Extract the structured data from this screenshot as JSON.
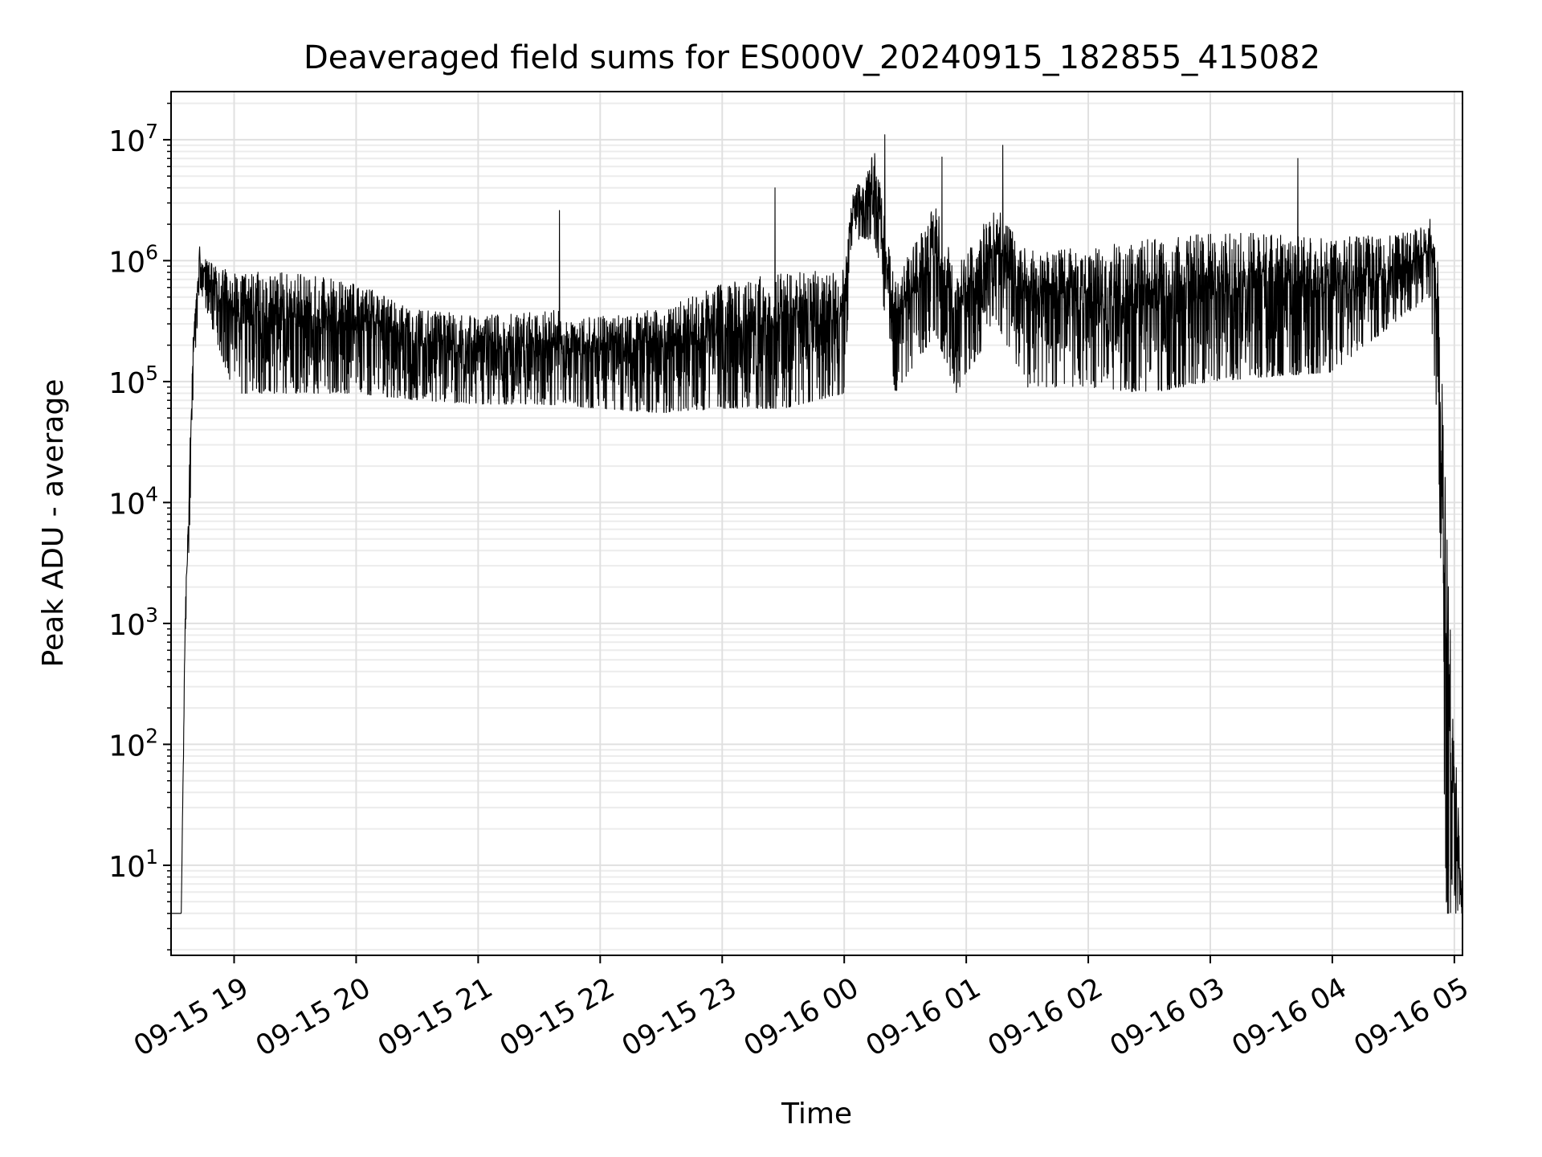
{
  "chart_data": {
    "type": "line",
    "title": "Deaveraged field sums for ES000V_20240915_182855_415082",
    "xlabel": "Time",
    "ylabel": "Peak ADU - average",
    "yscale": "log",
    "ylim": [
      1.8,
      25000000
    ],
    "xlim": [
      "2024-09-15 18:29",
      "2024-09-16 05:04"
    ],
    "grid": true,
    "minor_grid": true,
    "x_ticks": [
      {
        "value": "2024-09-15 19:00",
        "label": "09-15 19"
      },
      {
        "value": "2024-09-15 20:00",
        "label": "09-15 20"
      },
      {
        "value": "2024-09-15 21:00",
        "label": "09-15 21"
      },
      {
        "value": "2024-09-15 22:00",
        "label": "09-15 22"
      },
      {
        "value": "2024-09-15 23:00",
        "label": "09-15 23"
      },
      {
        "value": "2024-09-16 00:00",
        "label": "09-16 00"
      },
      {
        "value": "2024-09-16 01:00",
        "label": "09-16 01"
      },
      {
        "value": "2024-09-16 02:00",
        "label": "09-16 02"
      },
      {
        "value": "2024-09-16 03:00",
        "label": "09-16 03"
      },
      {
        "value": "2024-09-16 04:00",
        "label": "09-16 04"
      },
      {
        "value": "2024-09-16 05:00",
        "label": "09-16 05"
      }
    ],
    "y_ticks": [
      {
        "value": 10,
        "base": "10",
        "exp": "1"
      },
      {
        "value": 100,
        "base": "10",
        "exp": "2"
      },
      {
        "value": 1000,
        "base": "10",
        "exp": "3"
      },
      {
        "value": 10000,
        "base": "10",
        "exp": "4"
      },
      {
        "value": 100000,
        "base": "10",
        "exp": "5"
      },
      {
        "value": 1000000,
        "base": "10",
        "exp": "6"
      },
      {
        "value": 10000000,
        "base": "10",
        "exp": "7"
      }
    ],
    "series": [
      {
        "color": "#000000",
        "envelope": [
          {
            "x": "2024-09-15 18:29",
            "low": 4,
            "high": 4
          },
          {
            "x": "2024-09-15 18:34",
            "low": 4,
            "high": 4
          },
          {
            "x": "2024-09-15 18:36",
            "low": 800,
            "high": 1500
          },
          {
            "x": "2024-09-15 18:38",
            "low": 5000,
            "high": 20000
          },
          {
            "x": "2024-09-15 18:40",
            "low": 100000,
            "high": 300000
          },
          {
            "x": "2024-09-15 18:43",
            "low": 600000,
            "high": 1300000
          },
          {
            "x": "2024-09-15 18:50",
            "low": 250000,
            "high": 900000
          },
          {
            "x": "2024-09-15 19:00",
            "low": 80000,
            "high": 850000
          },
          {
            "x": "2024-09-15 19:30",
            "low": 80000,
            "high": 800000
          },
          {
            "x": "2024-09-15 20:00",
            "low": 80000,
            "high": 650000
          },
          {
            "x": "2024-09-15 20:30",
            "low": 70000,
            "high": 400000
          },
          {
            "x": "2024-09-15 21:00",
            "low": 65000,
            "high": 350000
          },
          {
            "x": "2024-09-15 21:30",
            "low": 65000,
            "high": 400000
          },
          {
            "x": "2024-09-15 22:00",
            "low": 60000,
            "high": 350000
          },
          {
            "x": "2024-09-15 22:30",
            "low": 55000,
            "high": 400000
          },
          {
            "x": "2024-09-15 23:00",
            "low": 60000,
            "high": 650000
          },
          {
            "x": "2024-09-15 23:30",
            "low": 60000,
            "high": 800000
          },
          {
            "x": "2024-09-16 00:00",
            "low": 80000,
            "high": 850000
          },
          {
            "x": "2024-09-16 00:04",
            "low": 1500000,
            "high": 3500000
          },
          {
            "x": "2024-09-16 00:15",
            "low": 1500000,
            "high": 8000000
          },
          {
            "x": "2024-09-16 00:25",
            "low": 80000,
            "high": 700000
          },
          {
            "x": "2024-09-16 00:45",
            "low": 250000,
            "high": 3000000
          },
          {
            "x": "2024-09-16 00:55",
            "low": 80000,
            "high": 900000
          },
          {
            "x": "2024-09-16 01:15",
            "low": 300000,
            "high": 3000000
          },
          {
            "x": "2024-09-16 01:30",
            "low": 90000,
            "high": 1200000
          },
          {
            "x": "2024-09-16 02:00",
            "low": 90000,
            "high": 1300000
          },
          {
            "x": "2024-09-16 02:30",
            "low": 80000,
            "high": 1500000
          },
          {
            "x": "2024-09-16 03:00",
            "low": 100000,
            "high": 1700000
          },
          {
            "x": "2024-09-16 03:30",
            "low": 110000,
            "high": 1700000
          },
          {
            "x": "2024-09-16 04:00",
            "low": 120000,
            "high": 1600000
          },
          {
            "x": "2024-09-16 04:30",
            "low": 300000,
            "high": 1600000
          },
          {
            "x": "2024-09-16 04:48",
            "low": 500000,
            "high": 2000000
          },
          {
            "x": "2024-09-16 04:52",
            "low": 30000,
            "high": 1000000
          },
          {
            "x": "2024-09-16 04:56",
            "low": 4,
            "high": 10000
          },
          {
            "x": "2024-09-16 05:04",
            "low": 4,
            "high": 4
          }
        ],
        "spikes": [
          {
            "x": "2024-09-15 18:43",
            "y": 1300000
          },
          {
            "x": "2024-09-15 21:40",
            "y": 2600000
          },
          {
            "x": "2024-09-15 23:26",
            "y": 4000000
          },
          {
            "x": "2024-09-16 00:20",
            "y": 11000000
          },
          {
            "x": "2024-09-16 00:48",
            "y": 7200000
          },
          {
            "x": "2024-09-16 01:18",
            "y": 9000000
          },
          {
            "x": "2024-09-16 03:43",
            "y": 7000000
          },
          {
            "x": "2024-09-16 04:48",
            "y": 2200000
          }
        ]
      }
    ]
  }
}
